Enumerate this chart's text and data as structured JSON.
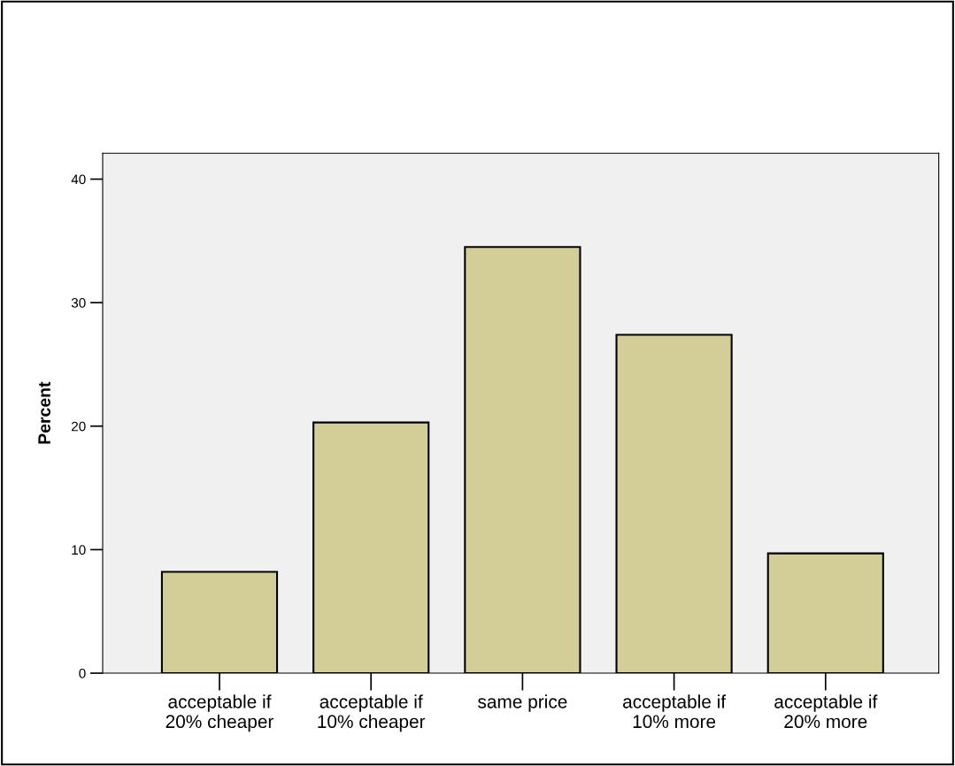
{
  "chart_data": {
    "type": "bar",
    "ylabel": "Percent",
    "categories": [
      "acceptable if\n20% cheaper",
      "acceptable if\n10% cheaper",
      "same price",
      "acceptable if\n10% more",
      "acceptable if\n20% more"
    ],
    "values": [
      8.2,
      20.3,
      34.5,
      27.4,
      9.7
    ],
    "color": "#d3ce97",
    "ylim": [
      0,
      42.1
    ],
    "yticks": [
      0,
      10,
      20,
      30,
      40
    ],
    "grid": false,
    "legend": false
  }
}
